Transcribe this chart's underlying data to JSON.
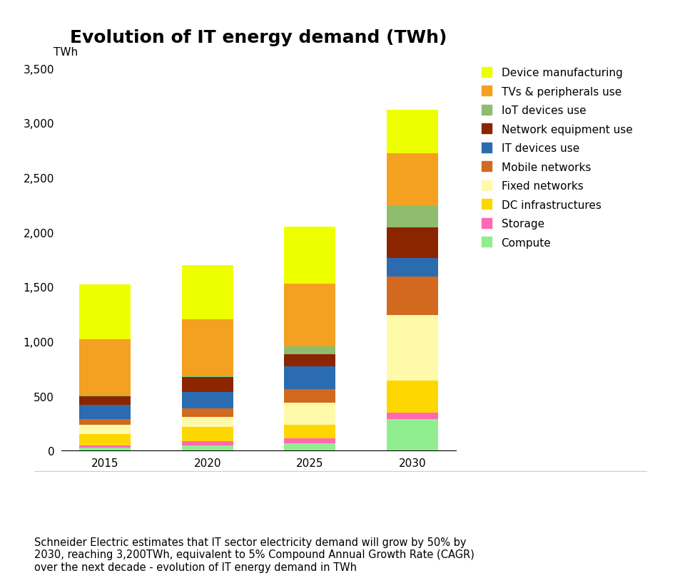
{
  "title": "Evolution of IT energy demand (TWh)",
  "years": [
    "2015",
    "2020",
    "2025",
    "2030"
  ],
  "ylabel": "TWh",
  "ylim": [
    0,
    3600
  ],
  "yticks": [
    0,
    500,
    1000,
    1500,
    2000,
    2500,
    3000,
    3500
  ],
  "ytick_labels": [
    "0",
    "500",
    "1,000",
    "1,500",
    "2,000",
    "2,500",
    "3,000",
    "3,500"
  ],
  "categories": [
    "Compute",
    "Storage",
    "DC infrastructures",
    "Fixed networks",
    "Mobile networks",
    "IT devices use",
    "Network equipment use",
    "IoT devices use",
    "TVs & peripherals use",
    "Device manufacturing"
  ],
  "colors": [
    "#90EE90",
    "#FF69B4",
    "#FFD700",
    "#FFFAAA",
    "#D2691E",
    "#2B6CB0",
    "#8B2500",
    "#8FBC6F",
    "#F4A020",
    "#EEFF00"
  ],
  "values": {
    "Compute": [
      30,
      45,
      70,
      290
    ],
    "Storage": [
      20,
      45,
      40,
      60
    ],
    "DC infrastructures": [
      100,
      130,
      130,
      290
    ],
    "Fixed networks": [
      85,
      90,
      200,
      600
    ],
    "Mobile networks": [
      55,
      75,
      120,
      350
    ],
    "IT devices use": [
      130,
      155,
      210,
      175
    ],
    "Network equipment use": [
      75,
      135,
      115,
      275
    ],
    "IoT devices use": [
      15,
      15,
      70,
      200
    ],
    "TVs & peripherals use": [
      510,
      515,
      575,
      480
    ],
    "Device manufacturing": [
      500,
      495,
      520,
      400
    ]
  },
  "footer_text": "Schneider Electric estimates that IT sector electricity demand will grow by 50% by\n2030, reaching 3,200TWh, equivalent to 5% Compound Annual Growth Rate (CAGR)\nover the next decade - evolution of IT energy demand in TWh",
  "title_fontsize": 18,
  "axis_label_fontsize": 11,
  "tick_fontsize": 11,
  "legend_fontsize": 11,
  "footer_fontsize": 10.5,
  "bar_width": 0.5
}
